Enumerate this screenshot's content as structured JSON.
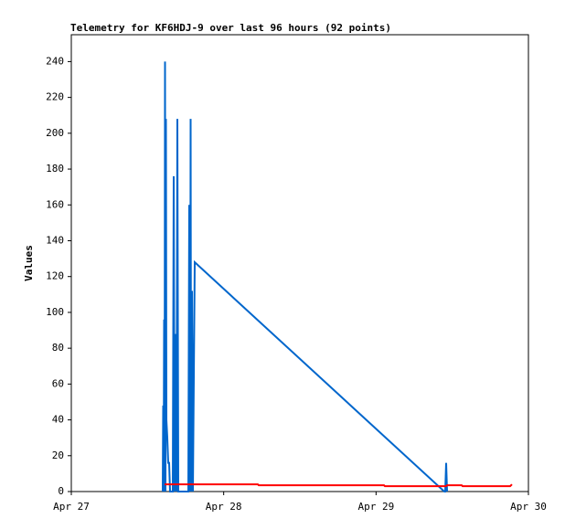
{
  "chart_data": {
    "type": "line",
    "title": "Telemetry for KF6HDJ-9 over last 96 hours (92 points)",
    "y_label": "Values",
    "xlim": [
      0,
      3
    ],
    "xticks": [
      {
        "value": 0,
        "label": "Apr 27"
      },
      {
        "value": 1,
        "label": "Apr 28"
      },
      {
        "value": 2,
        "label": "Apr 29"
      },
      {
        "value": 3,
        "label": "Apr 30"
      }
    ],
    "ylim": [
      0,
      255
    ],
    "yticks": [
      0,
      20,
      40,
      60,
      80,
      100,
      120,
      140,
      160,
      180,
      200,
      220,
      240
    ],
    "grid": false,
    "series": [
      {
        "color": "#0066cc",
        "x": [
          0.6,
          0.603,
          0.606,
          0.609,
          0.612,
          0.615,
          0.618,
          0.621,
          0.624,
          0.63,
          0.636,
          0.642,
          0.648,
          0.666,
          0.672,
          0.678,
          0.684,
          0.69,
          0.696,
          0.702,
          0.768,
          0.774,
          0.78,
          0.783,
          0.786,
          0.792,
          0.798,
          0.804,
          0.81,
          2.448,
          2.454,
          2.46,
          2.466
        ],
        "values": [
          0,
          48,
          0,
          96,
          0,
          240,
          0,
          208,
          40,
          30,
          16,
          16,
          0,
          0,
          176,
          0,
          88,
          0,
          208,
          0,
          0,
          160,
          0,
          208,
          0,
          112,
          0,
          64,
          128,
          0,
          0,
          16,
          0
        ]
      },
      {
        "color": "#ff0000",
        "x": [
          0.612,
          1.224,
          1.23,
          2.052,
          2.058,
          2.46,
          2.466,
          2.562,
          2.568,
          2.88,
          2.892
        ],
        "values": [
          4,
          4,
          3.5,
          3.5,
          3,
          3,
          3.5,
          3.5,
          3,
          3,
          4
        ]
      }
    ]
  }
}
